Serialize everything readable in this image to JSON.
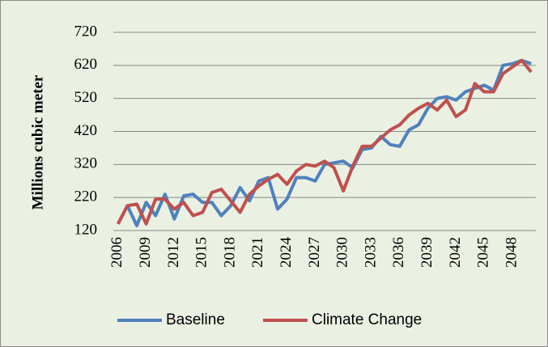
{
  "chart_data": {
    "type": "line",
    "y_label": "Millions cubic meter",
    "categories": [
      "2006",
      null,
      null,
      "2009",
      null,
      null,
      "2012",
      null,
      null,
      "2015",
      null,
      null,
      "2018",
      null,
      null,
      "2021",
      null,
      null,
      "2024",
      null,
      null,
      "2027",
      null,
      null,
      "2030",
      null,
      null,
      "2033",
      null,
      null,
      "2036",
      null,
      null,
      "2039",
      null,
      null,
      "2042",
      null,
      null,
      "2045",
      null,
      null,
      "2048",
      null,
      null
    ],
    "series": [
      {
        "name": "Baseline",
        "color": "#4f81bd",
        "values": [
          140,
          195,
          135,
          205,
          165,
          230,
          155,
          225,
          230,
          205,
          205,
          165,
          195,
          250,
          210,
          270,
          280,
          185,
          215,
          280,
          280,
          270,
          320,
          325,
          330,
          310,
          365,
          370,
          405,
          380,
          375,
          425,
          440,
          490,
          520,
          525,
          515,
          540,
          550,
          560,
          545,
          620,
          625,
          635,
          625
        ]
      },
      {
        "name": "Climate Change",
        "color": "#c0504d",
        "values": [
          140,
          195,
          200,
          140,
          215,
          215,
          185,
          205,
          165,
          175,
          235,
          245,
          210,
          175,
          230,
          255,
          275,
          290,
          260,
          300,
          320,
          315,
          330,
          310,
          240,
          315,
          375,
          375,
          400,
          425,
          440,
          470,
          490,
          505,
          485,
          515,
          465,
          485,
          565,
          540,
          540,
          595,
          615,
          635,
          600
        ]
      }
    ],
    "ylim": [
      120,
      720
    ],
    "yticks": [
      120,
      220,
      320,
      420,
      520,
      620,
      720
    ],
    "grid": true,
    "legend": "bottom"
  }
}
